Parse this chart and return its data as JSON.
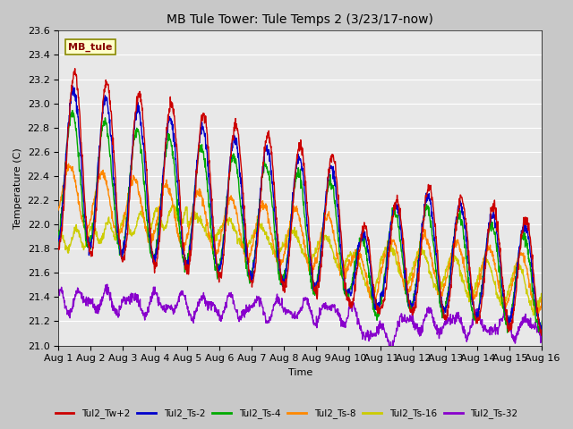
{
  "title": "MB Tule Tower: Tule Temps 2 (3/23/17-now)",
  "xlabel": "Time",
  "ylabel": "Temperature (C)",
  "ylim": [
    21.0,
    23.6
  ],
  "xlim": [
    0,
    15
  ],
  "xtick_labels": [
    "Aug 1",
    "Aug 2",
    "Aug 3",
    "Aug 4",
    "Aug 5",
    "Aug 6",
    "Aug 7",
    "Aug 8",
    "Aug 9",
    "Aug 10",
    "Aug 11",
    "Aug 12",
    "Aug 13",
    "Aug 14",
    "Aug 15",
    "Aug 16"
  ],
  "ytick_vals": [
    21.0,
    21.2,
    21.4,
    21.6,
    21.8,
    22.0,
    22.2,
    22.4,
    22.6,
    22.8,
    23.0,
    23.2,
    23.4,
    23.6
  ],
  "fig_bg_color": "#c8c8c8",
  "plot_bg_color": "#e8e8e8",
  "legend_label": "MB_tule",
  "series_colors": {
    "Tul2_Tw+2": "#cc0000",
    "Tul2_Ts-2": "#0000cc",
    "Tul2_Ts-4": "#00aa00",
    "Tul2_Ts-8": "#ff8800",
    "Tul2_Ts-16": "#cccc00",
    "Tul2_Ts-32": "#8800cc"
  },
  "legend_items": [
    "Tul2_Tw+2",
    "Tul2_Ts-2",
    "Tul2_Ts-4",
    "Tul2_Ts-8",
    "Tul2_Ts-16",
    "Tul2_Ts-32"
  ],
  "title_fontsize": 10,
  "axis_label_fontsize": 8,
  "tick_fontsize": 8,
  "linewidth": 1.0,
  "grid_color": "#ffffff",
  "annotation_facecolor": "#ffffcc",
  "annotation_edgecolor": "#888800",
  "annotation_textcolor": "#880000"
}
